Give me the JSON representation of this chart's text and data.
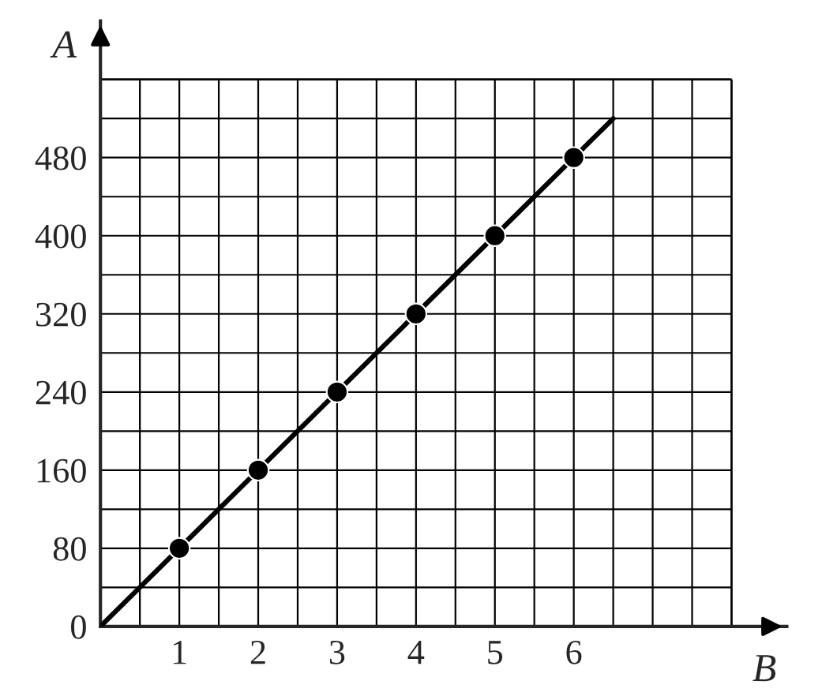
{
  "chart_data": {
    "type": "line",
    "xlabel": "B",
    "ylabel": "A",
    "series": [
      {
        "x": [
          0,
          6.5
        ],
        "values": [
          0,
          520
        ],
        "color": "#000000",
        "marker": "none"
      },
      {
        "type": "scatter",
        "x": [
          1,
          2,
          3,
          4,
          5,
          6
        ],
        "values": [
          80,
          160,
          240,
          320,
          400,
          480
        ],
        "color": "#000000",
        "marker": "circle"
      }
    ],
    "xlim": [
      0,
      8.7
    ],
    "ylim": [
      0,
      620
    ],
    "xticks": [
      {
        "value": 0.5,
        "label": null
      },
      1,
      {
        "value": 1.5,
        "label": null
      },
      2,
      {
        "value": 2.5,
        "label": null
      },
      3,
      {
        "value": 3.5,
        "label": null
      },
      4,
      {
        "value": 4.5,
        "label": null
      },
      5,
      {
        "value": 5.5,
        "label": null
      },
      6,
      {
        "value": 6.5,
        "label": null
      },
      {
        "value": 7,
        "label": null
      },
      {
        "value": 7.5,
        "label": null
      },
      {
        "value": 8,
        "label": null
      }
    ],
    "yticks": [
      0,
      {
        "value": 40,
        "label": null
      },
      80,
      {
        "value": 120,
        "label": null
      },
      160,
      {
        "value": 200,
        "label": null
      },
      240,
      {
        "value": 280,
        "label": null
      },
      320,
      {
        "value": 360,
        "label": null
      },
      400,
      {
        "value": 440,
        "label": null
      },
      480,
      {
        "value": 520,
        "label": null
      },
      {
        "value": 560,
        "label": null
      }
    ],
    "grid": true
  }
}
